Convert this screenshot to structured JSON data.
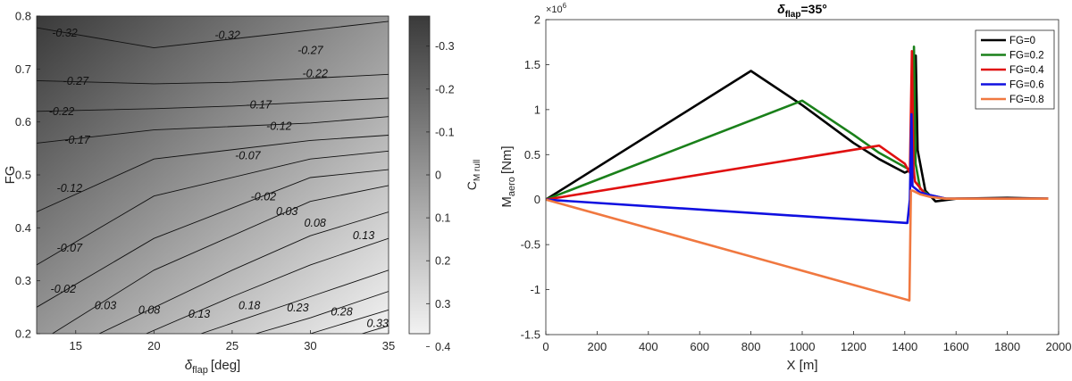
{
  "chart_data": [
    {
      "type": "heatmap",
      "xlabel": "δ",
      "xlabel_sub": "flap",
      "xlabel_unit": "[deg]",
      "ylabel": "FG",
      "xlim": [
        12.5,
        35
      ],
      "ylim": [
        0.2,
        0.8
      ],
      "xticks": [
        "15",
        "20",
        "25",
        "30",
        "35"
      ],
      "yticks": [
        "0.2",
        "0.3",
        "0.4",
        "0.5",
        "0.6",
        "0.7",
        "0.8"
      ],
      "colorbar": {
        "label": "C",
        "label_sub": "M rull",
        "range": [
          -0.37,
          0.37
        ],
        "ticks": [
          "-0.3",
          "-0.2",
          "-0.1",
          "0",
          "0.1",
          "0.2",
          "0.3",
          "0.4"
        ],
        "color_low": "#3a3a3a",
        "color_high": "#f2f2f2"
      },
      "contours": [
        {
          "label": "-0.32",
          "points": [
            [
              12.5,
              0.778
            ],
            [
              20,
              0.74
            ],
            [
              35,
              0.79
            ]
          ],
          "labels_at": [
            [
              14.3,
              0.768
            ],
            [
              24.7,
              0.764
            ]
          ]
        },
        {
          "label": "-0.27",
          "points": [
            [
              12.5,
              0.678
            ],
            [
              20,
              0.672
            ],
            [
              25,
              0.675
            ],
            [
              35,
              0.69
            ]
          ],
          "labels_at": [
            [
              15.0,
              0.677
            ],
            [
              30.0,
              0.735
            ]
          ]
        },
        {
          "label": "-0.22",
          "points": [
            [
              12.5,
              0.62
            ],
            [
              20,
              0.625
            ],
            [
              25,
              0.63
            ],
            [
              35,
              0.645
            ]
          ],
          "labels_at": [
            [
              14.1,
              0.62
            ],
            [
              30.3,
              0.691
            ]
          ]
        },
        {
          "label": "-0.17",
          "points": [
            [
              12.5,
              0.56
            ],
            [
              20,
              0.585
            ],
            [
              30,
              0.598
            ],
            [
              35,
              0.61
            ]
          ],
          "labels_at": [
            [
              15.1,
              0.566
            ],
            [
              26.7,
              0.632
            ]
          ]
        },
        {
          "label": "-0.12",
          "points": [
            [
              12.5,
              0.43
            ],
            [
              20,
              0.53
            ],
            [
              30,
              0.565
            ],
            [
              35,
              0.575
            ]
          ],
          "labels_at": [
            [
              14.6,
              0.475
            ],
            [
              28.0,
              0.592
            ]
          ]
        },
        {
          "label": "-0.07",
          "points": [
            [
              12.5,
              0.33
            ],
            [
              20,
              0.46
            ],
            [
              30,
              0.53
            ],
            [
              35,
              0.545
            ]
          ],
          "labels_at": [
            [
              14.6,
              0.362
            ],
            [
              26.0,
              0.536
            ]
          ]
        },
        {
          "label": "-0.02",
          "points": [
            [
              12.5,
              0.25
            ],
            [
              20,
              0.38
            ],
            [
              30,
              0.495
            ],
            [
              35,
              0.51
            ]
          ],
          "labels_at": [
            [
              14.2,
              0.284
            ],
            [
              27.0,
              0.459
            ]
          ]
        },
        {
          "label": "0.03",
          "points": [
            [
              13.5,
              0.2
            ],
            [
              20,
              0.32
            ],
            [
              30,
              0.45
            ],
            [
              35,
              0.48
            ]
          ],
          "labels_at": [
            [
              16.9,
              0.253
            ],
            [
              28.5,
              0.431
            ]
          ]
        },
        {
          "label": "0.08",
          "points": [
            [
              16.5,
              0.2
            ],
            [
              25,
              0.32
            ],
            [
              30,
              0.385
            ],
            [
              35,
              0.43
            ]
          ],
          "labels_at": [
            [
              19.7,
              0.245
            ],
            [
              30.3,
              0.409
            ]
          ]
        },
        {
          "label": "0.13",
          "points": [
            [
              19.5,
              0.2
            ],
            [
              25,
              0.27
            ],
            [
              30,
              0.33
            ],
            [
              35,
              0.38
            ]
          ],
          "labels_at": [
            [
              22.9,
              0.237
            ],
            [
              33.4,
              0.385
            ]
          ]
        },
        {
          "label": "0.18",
          "points": [
            [
              23.0,
              0.2
            ],
            [
              30,
              0.27
            ],
            [
              35,
              0.32
            ]
          ],
          "labels_at": [
            [
              26.1,
              0.253
            ]
          ]
        },
        {
          "label": "0.23",
          "points": [
            [
              26.5,
              0.2
            ],
            [
              30,
              0.23
            ],
            [
              35,
              0.28
            ]
          ],
          "labels_at": [
            [
              29.2,
              0.249
            ]
          ]
        },
        {
          "label": "0.28",
          "points": [
            [
              30.0,
              0.2
            ],
            [
              35,
              0.245
            ]
          ],
          "labels_at": [
            [
              32.0,
              0.241
            ]
          ]
        },
        {
          "label": "0.33",
          "points": [
            [
              33.3,
              0.2
            ],
            [
              35,
              0.215
            ]
          ],
          "labels_at": [
            [
              34.3,
              0.219
            ]
          ]
        }
      ]
    },
    {
      "type": "line",
      "title": "δ",
      "title_sub": "flap",
      "title_tail": "=35°",
      "xlabel": "X [m]",
      "ylabel": "M",
      "ylabel_sub": "aero",
      "ylabel_unit": "[Nm]",
      "y_multiplier_base": "×10",
      "y_multiplier_exp": "6",
      "xlim": [
        0,
        2000
      ],
      "ylim": [
        -1.5,
        2.0
      ],
      "xticks": [
        "0",
        "200",
        "400",
        "600",
        "800",
        "1000",
        "1200",
        "1400",
        "1600",
        "1800",
        "2000"
      ],
      "yticks": [
        "-1.5",
        "-1",
        "-0.5",
        "0",
        "0.5",
        "1",
        "1.5",
        "2"
      ],
      "legend_position": "top-right",
      "series": [
        {
          "name": "FG=0",
          "color": "#000000",
          "x": [
            0,
            800,
            1000,
            1200,
            1300,
            1400,
            1430,
            1438,
            1443,
            1450,
            1480,
            1520,
            1600,
            1800,
            1960
          ],
          "y": [
            0,
            1.43,
            1.05,
            0.63,
            0.45,
            0.3,
            0.34,
            0.68,
            1.6,
            0.55,
            0.1,
            -0.02,
            0.01,
            0.02,
            0.01
          ]
        },
        {
          "name": "FG=0.2",
          "color": "#1a801a",
          "x": [
            0,
            1000,
            1200,
            1300,
            1420,
            1430,
            1436,
            1442,
            1460,
            1500,
            1560,
            1800,
            1960
          ],
          "y": [
            0,
            1.1,
            0.72,
            0.52,
            0.33,
            0.55,
            1.7,
            0.4,
            0.12,
            0.04,
            0.01,
            0.01,
            0.01
          ]
        },
        {
          "name": "FG=0.4",
          "color": "#e01010",
          "x": [
            0,
            1300,
            1400,
            1420,
            1428,
            1434,
            1440,
            1480,
            1560,
            1800,
            1960
          ],
          "y": [
            0,
            0.6,
            0.4,
            0.3,
            1.65,
            0.35,
            0.2,
            0.06,
            0.01,
            0.01,
            0.01
          ]
        },
        {
          "name": "FG=0.6",
          "color": "#1010e0",
          "x": [
            0,
            1410,
            1420,
            1426,
            1430,
            1460,
            1500,
            1560,
            1800,
            1960
          ],
          "y": [
            0,
            -0.26,
            0.0,
            0.95,
            0.15,
            0.08,
            0.05,
            0.01,
            0.01,
            0.01
          ]
        },
        {
          "name": "FG=0.8",
          "color": "#f07840",
          "x": [
            0,
            1418,
            1424,
            1430,
            1460,
            1500,
            1560,
            1800,
            1960
          ],
          "y": [
            0,
            -1.12,
            0.1,
            0.1,
            0.06,
            0.03,
            0.01,
            0.01,
            0.01
          ]
        }
      ]
    }
  ]
}
